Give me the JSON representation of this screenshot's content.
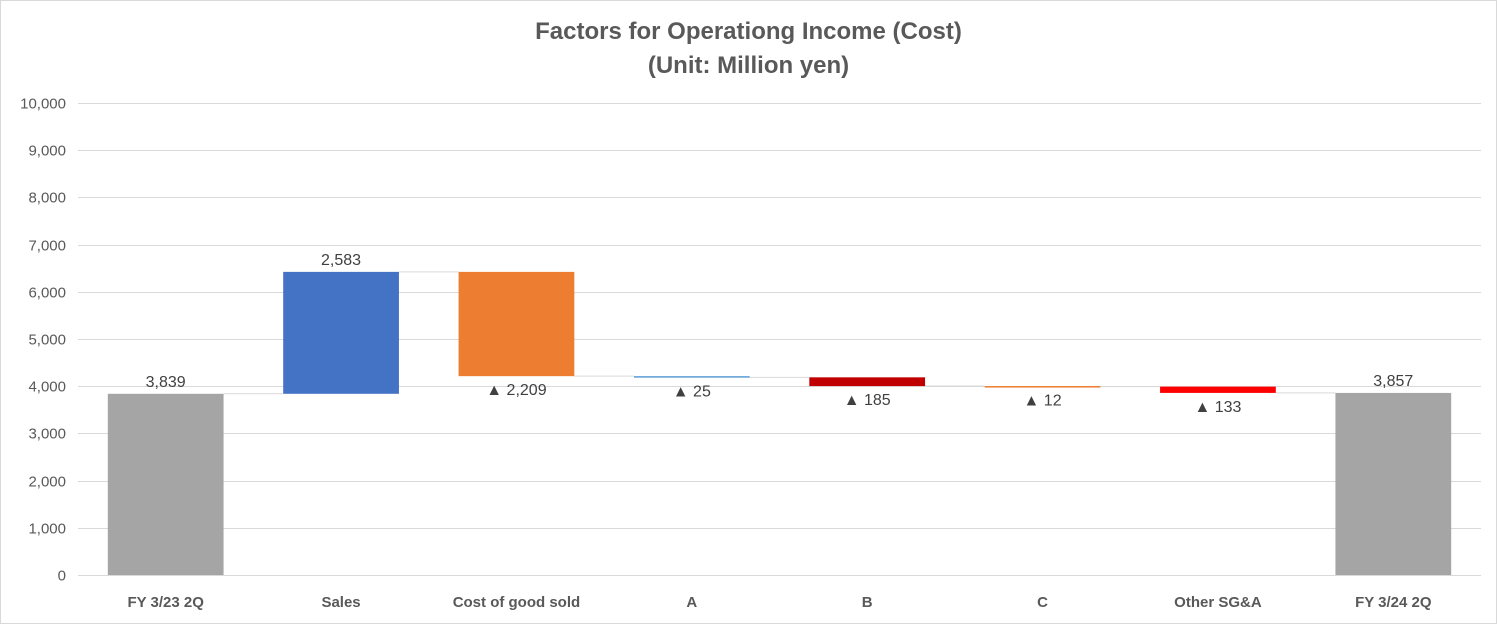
{
  "title": {
    "line1": "Factors for Operationg Income (Cost)",
    "line2": "(Unit: Million yen)"
  },
  "chart_data": {
    "type": "bar",
    "subtype": "waterfall",
    "title": "Factors for Operationg Income (Cost) (Unit: Million yen)",
    "ylim": [
      0,
      10000
    ],
    "y_ticks": [
      0,
      1000,
      2000,
      3000,
      4000,
      5000,
      6000,
      7000,
      8000,
      9000,
      10000
    ],
    "y_tick_labels": [
      "0",
      "1,000",
      "2,000",
      "3,000",
      "4,000",
      "5,000",
      "6,000",
      "7,000",
      "8,000",
      "9,000",
      "10,000"
    ],
    "grid": true,
    "legend": "none",
    "categories": [
      "FY 3/23 2Q",
      "Sales",
      "Cost of good sold",
      "A",
      "B",
      "C",
      "Other SG&A",
      "FY 3/24 2Q"
    ],
    "steps": [
      {
        "category": "FY 3/23 2Q",
        "kind": "total",
        "value": 3839,
        "label": "3,839",
        "color": "#a5a5a5"
      },
      {
        "category": "Sales",
        "kind": "increase",
        "value": 2583,
        "label": "2,583",
        "color": "#4472c4"
      },
      {
        "category": "Cost of good sold",
        "kind": "decrease",
        "value": -2209,
        "label": "▲ 2,209",
        "color": "#ed7d31"
      },
      {
        "category": "A",
        "kind": "decrease",
        "value": -25,
        "label": "▲ 25",
        "color": "#5b9bd5"
      },
      {
        "category": "B",
        "kind": "decrease",
        "value": -185,
        "label": "▲ 185",
        "color": "#c00000"
      },
      {
        "category": "C",
        "kind": "decrease",
        "value": -12,
        "label": "▲ 12",
        "color": "#ed7d31"
      },
      {
        "category": "Other SG&A",
        "kind": "decrease",
        "value": -133,
        "label": "▲ 133",
        "color": "#ff0000"
      },
      {
        "category": "FY 3/24 2Q",
        "kind": "total",
        "value": 3857,
        "label": "3,857",
        "color": "#a5a5a5"
      }
    ]
  }
}
